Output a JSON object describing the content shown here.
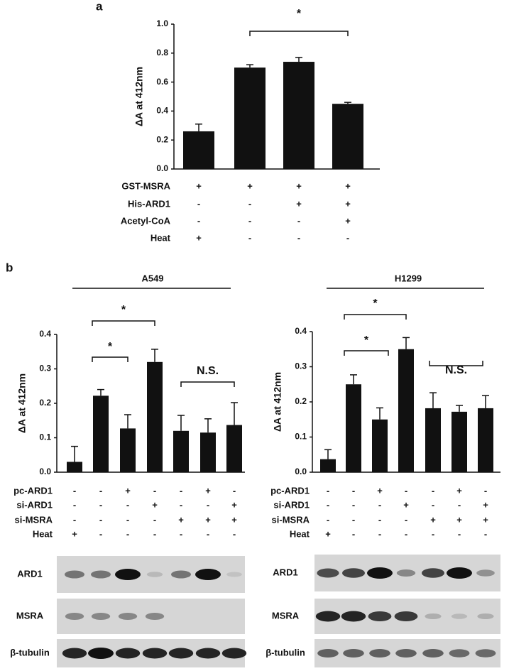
{
  "chart_data": [
    {
      "type": "bar",
      "panel_label": "a",
      "ylabel": "ΔA at 412nm",
      "categories": [
        null,
        null,
        null,
        null
      ],
      "values": [
        0.26,
        0.7,
        0.74,
        0.45
      ],
      "errors": [
        0.05,
        0.02,
        0.03,
        0.01
      ],
      "color": "#111111",
      "ylim": [
        0,
        1.0
      ],
      "yticks": [
        {
          "value": 0,
          "label": "0.0"
        },
        0.2,
        0.4,
        0.6,
        0.8,
        {
          "value": 1.0,
          "label": "1.0"
        }
      ],
      "conditions": [
        {
          "name": "GST-MSRA",
          "values": [
            "+",
            "+",
            "+",
            "+"
          ]
        },
        {
          "name": "His-ARD1",
          "values": [
            "-",
            "-",
            "+",
            "+"
          ]
        },
        {
          "name": "Acetyl-CoA",
          "values": [
            "-",
            "-",
            "-",
            "+"
          ]
        },
        {
          "name": "Heat",
          "values": [
            "+",
            "-",
            "-",
            "-"
          ]
        }
      ],
      "annotations": [
        "*"
      ]
    },
    {
      "type": "bar",
      "panel_label": "b",
      "title": "A549",
      "ylabel": "ΔA at 412nm",
      "categories": [
        null,
        null,
        null,
        null,
        null,
        null,
        null
      ],
      "values": [
        0.03,
        0.222,
        0.127,
        0.32,
        0.12,
        0.115,
        0.137
      ],
      "errors": [
        0.045,
        0.018,
        0.04,
        0.037,
        0.045,
        0.04,
        0.065
      ],
      "color": "#111111",
      "ylim": [
        0,
        0.4
      ],
      "yticks": [
        {
          "value": 0,
          "label": "0.0"
        },
        0.1,
        0.2,
        0.3,
        0.4
      ],
      "conditions": [
        {
          "name": "pc-ARD1",
          "values": [
            "-",
            "-",
            "+",
            "-",
            "-",
            "+",
            "-"
          ]
        },
        {
          "name": "si-ARD1",
          "values": [
            "-",
            "-",
            "-",
            "+",
            "-",
            "-",
            "+"
          ]
        },
        {
          "name": "si-MSRA",
          "values": [
            "-",
            "-",
            "-",
            "-",
            "+",
            "+",
            "+"
          ]
        },
        {
          "name": "Heat",
          "values": [
            "+",
            "-",
            "-",
            "-",
            "-",
            "-",
            "-"
          ]
        }
      ],
      "annotations": [
        "*",
        "*",
        "N.S."
      ],
      "blots": [
        "ARD1",
        "MSRA",
        "β-tubulin"
      ]
    },
    {
      "type": "bar",
      "title": "H1299",
      "ylabel": "ΔA at 412nm",
      "categories": [
        null,
        null,
        null,
        null,
        null,
        null,
        null
      ],
      "values": [
        0.037,
        0.25,
        0.15,
        0.35,
        0.182,
        0.172,
        0.182
      ],
      "errors": [
        0.027,
        0.027,
        0.033,
        0.033,
        0.044,
        0.018,
        0.036
      ],
      "color": "#111111",
      "ylim": [
        0,
        0.4
      ],
      "yticks": [
        {
          "value": 0,
          "label": "0.0"
        },
        0.1,
        0.2,
        0.3,
        0.4
      ],
      "conditions": [
        {
          "name": "pc-ARD1",
          "values": [
            "-",
            "-",
            "+",
            "-",
            "-",
            "+",
            "-"
          ]
        },
        {
          "name": "si-ARD1",
          "values": [
            "-",
            "-",
            "-",
            "+",
            "-",
            "-",
            "+"
          ]
        },
        {
          "name": "si-MSRA",
          "values": [
            "-",
            "-",
            "-",
            "-",
            "+",
            "+",
            "+"
          ]
        },
        {
          "name": "Heat",
          "values": [
            "+",
            "-",
            "-",
            "-",
            "-",
            "-",
            "-"
          ]
        }
      ],
      "annotations": [
        "*",
        "*",
        "N.S."
      ],
      "blots": [
        "ARD1",
        "MSRA",
        "β-tubulin"
      ]
    }
  ]
}
